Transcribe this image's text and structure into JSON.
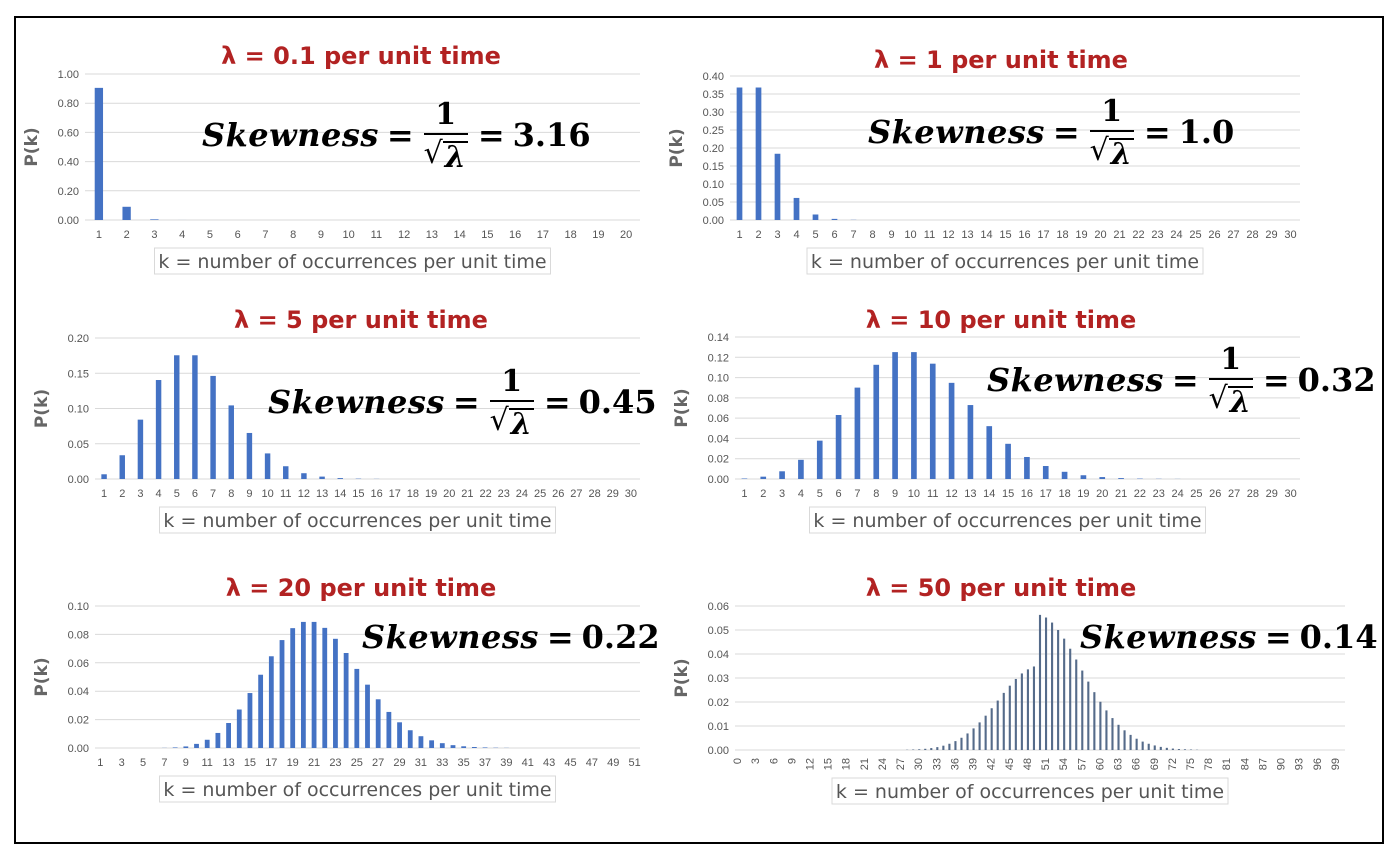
{
  "chart_data": [
    {
      "type": "bar",
      "title": "λ = 0.1 per unit time",
      "xlabel": "k = number of occurrences per unit time",
      "ylabel": "P(k)",
      "ylim": [
        0,
        1.0
      ],
      "yticks": [
        "0.00",
        "0.20",
        "0.40",
        "0.60",
        "0.80",
        "1.00"
      ],
      "categories": [
        1,
        2,
        3,
        4,
        5,
        6,
        7,
        8,
        9,
        10,
        11,
        12,
        13,
        14,
        15,
        16,
        17,
        18,
        19,
        20
      ],
      "x_tick_labels": [
        "1",
        "2",
        "3",
        "4",
        "5",
        "6",
        "7",
        "8",
        "9",
        "10",
        "11",
        "12",
        "13",
        "14",
        "15",
        "16",
        "17",
        "18",
        "19",
        "20"
      ],
      "values": [
        0.905,
        0.0905,
        0.0045,
        0.00015,
        0,
        0,
        0,
        0,
        0,
        0,
        0,
        0,
        0,
        0,
        0,
        0,
        0,
        0,
        0,
        0
      ],
      "annotation": {
        "word": "Skewness",
        "numerator": "1",
        "den": "λ",
        "value": "3.16"
      },
      "grid": true
    },
    {
      "type": "bar",
      "title": "λ = 1 per unit time",
      "xlabel": "k = number of occurrences per unit time",
      "ylabel": "P(k)",
      "ylim": [
        0,
        0.4
      ],
      "yticks": [
        "0.00",
        "0.05",
        "0.10",
        "0.15",
        "0.20",
        "0.25",
        "0.30",
        "0.35",
        "0.40"
      ],
      "categories": [
        1,
        2,
        3,
        4,
        5,
        6,
        7,
        8,
        9,
        10,
        11,
        12,
        13,
        14,
        15,
        16,
        17,
        18,
        19,
        20,
        21,
        22,
        23,
        24,
        25,
        26,
        27,
        28,
        29,
        30
      ],
      "x_tick_labels": [
        "1",
        "2",
        "3",
        "4",
        "5",
        "6",
        "7",
        "8",
        "9",
        "10",
        "11",
        "12",
        "13",
        "14",
        "15",
        "16",
        "17",
        "18",
        "19",
        "20",
        "21",
        "22",
        "23",
        "24",
        "25",
        "26",
        "27",
        "28",
        "29",
        "30"
      ],
      "values": [
        0.368,
        0.368,
        0.184,
        0.0613,
        0.0153,
        0.0031,
        0.0005,
        0,
        0,
        0,
        0,
        0,
        0,
        0,
        0,
        0,
        0,
        0,
        0,
        0,
        0,
        0,
        0,
        0,
        0,
        0,
        0,
        0,
        0,
        0
      ],
      "annotation": {
        "word": "Skewness",
        "numerator": "1",
        "den": "λ",
        "value": "1.0"
      },
      "grid": true
    },
    {
      "type": "bar",
      "title": "λ = 5 per unit time",
      "xlabel": "k = number of occurrences per unit time",
      "ylabel": "P(k)",
      "ylim": [
        0,
        0.2
      ],
      "yticks": [
        "0.00",
        "0.05",
        "0.10",
        "0.15",
        "0.20"
      ],
      "categories": [
        1,
        2,
        3,
        4,
        5,
        6,
        7,
        8,
        9,
        10,
        11,
        12,
        13,
        14,
        15,
        16,
        17,
        18,
        19,
        20,
        21,
        22,
        23,
        24,
        25,
        26,
        27,
        28,
        29,
        30
      ],
      "x_tick_labels": [
        "1",
        "2",
        "3",
        "4",
        "5",
        "6",
        "7",
        "8",
        "9",
        "10",
        "11",
        "12",
        "13",
        "14",
        "15",
        "16",
        "17",
        "18",
        "19",
        "20",
        "21",
        "22",
        "23",
        "24",
        "25",
        "26",
        "27",
        "28",
        "29",
        "30"
      ],
      "values": [
        0.0067,
        0.0337,
        0.0842,
        0.1404,
        0.1755,
        0.1755,
        0.1462,
        0.1044,
        0.0653,
        0.0363,
        0.0181,
        0.0082,
        0.0034,
        0.0013,
        0.0005,
        0.0002,
        0,
        0,
        0,
        0,
        0,
        0,
        0,
        0,
        0,
        0,
        0,
        0,
        0,
        0
      ],
      "annotation": {
        "word": "Skewness",
        "numerator": "1",
        "den": "λ",
        "value": "0.45"
      },
      "grid": true
    },
    {
      "type": "bar",
      "title": "λ = 10 per unit time",
      "xlabel": "k = number of occurrences per unit time",
      "ylabel": "P(k)",
      "ylim": [
        0,
        0.14
      ],
      "yticks": [
        "0.00",
        "0.02",
        "0.04",
        "0.06",
        "0.08",
        "0.10",
        "0.12",
        "0.14"
      ],
      "categories": [
        1,
        2,
        3,
        4,
        5,
        6,
        7,
        8,
        9,
        10,
        11,
        12,
        13,
        14,
        15,
        16,
        17,
        18,
        19,
        20,
        21,
        22,
        23,
        24,
        25,
        26,
        27,
        28,
        29,
        30
      ],
      "x_tick_labels": [
        "1",
        "2",
        "3",
        "4",
        "5",
        "6",
        "7",
        "8",
        "9",
        "10",
        "11",
        "12",
        "13",
        "14",
        "15",
        "16",
        "17",
        "18",
        "19",
        "20",
        "21",
        "22",
        "23",
        "24",
        "25",
        "26",
        "27",
        "28",
        "29",
        "30"
      ],
      "values": [
        0.0005,
        0.0023,
        0.0076,
        0.0189,
        0.0378,
        0.0631,
        0.0901,
        0.1126,
        0.1251,
        0.1251,
        0.1137,
        0.0948,
        0.0729,
        0.0521,
        0.0347,
        0.0217,
        0.0128,
        0.0071,
        0.0037,
        0.0019,
        0.0009,
        0.0004,
        0.0002,
        0.0001,
        0,
        0,
        0,
        0,
        0,
        0
      ],
      "annotation": {
        "word": "Skewness",
        "numerator": "1",
        "den": "λ",
        "value": "0.32"
      },
      "grid": true
    },
    {
      "type": "bar",
      "title": "λ = 20 per unit time",
      "xlabel": "k = number of occurrences per unit time",
      "ylabel": "P(k)",
      "ylim": [
        0,
        0.1
      ],
      "yticks": [
        "0.00",
        "0.02",
        "0.04",
        "0.06",
        "0.08",
        "0.10"
      ],
      "x_start": 1,
      "x_end": 51,
      "x_tick_labels": [
        "1",
        "3",
        "5",
        "7",
        "9",
        "11",
        "13",
        "15",
        "17",
        "19",
        "21",
        "23",
        "25",
        "27",
        "29",
        "31",
        "33",
        "35",
        "37",
        "39",
        "41",
        "43",
        "45",
        "47",
        "49",
        "51"
      ],
      "values": [
        0,
        0,
        0,
        0,
        0,
        0,
        0.0001,
        0.0004,
        0.0011,
        0.0029,
        0.0058,
        0.0106,
        0.0176,
        0.0271,
        0.0387,
        0.0516,
        0.0646,
        0.076,
        0.0844,
        0.0888,
        0.0888,
        0.0846,
        0.0769,
        0.0669,
        0.0557,
        0.0446,
        0.0343,
        0.0254,
        0.0181,
        0.0125,
        0.0083,
        0.0054,
        0.0034,
        0.002,
        0.0012,
        0.0007,
        0.0004,
        0.0002,
        0.0001,
        0,
        0,
        0,
        0,
        0,
        0,
        0,
        0,
        0,
        0,
        0,
        0
      ],
      "annotation": {
        "word": "Skewness",
        "value": "0.22"
      },
      "grid": true
    },
    {
      "type": "bar",
      "title": "λ = 50 per unit time",
      "xlabel": "k = number of occurrences per unit time",
      "ylabel": "P(k)",
      "ylim": [
        0,
        0.06
      ],
      "yticks": [
        "0.00",
        "0.01",
        "0.02",
        "0.03",
        "0.04",
        "0.05",
        "0.06"
      ],
      "x_start": 0,
      "x_end": 100,
      "x_tick_labels": [
        "0",
        "3",
        "6",
        "9",
        "12",
        "15",
        "18",
        "21",
        "24",
        "27",
        "30",
        "33",
        "36",
        "39",
        "42",
        "45",
        "48",
        "51",
        "54",
        "57",
        "60",
        "63",
        "66",
        "69",
        "72",
        "75",
        "78",
        "81",
        "84",
        "87",
        "90",
        "93",
        "96",
        "99"
      ],
      "values": [
        0,
        0,
        0,
        0,
        0,
        0,
        0,
        0,
        0,
        0,
        0,
        0,
        0,
        0,
        0,
        0,
        0,
        0,
        0,
        0,
        0,
        0,
        0,
        0,
        0,
        0,
        0,
        0,
        0.0001,
        0.0002,
        0.0003,
        0.0005,
        0.0008,
        0.0012,
        0.0018,
        0.0026,
        0.0037,
        0.0051,
        0.0069,
        0.009,
        0.0115,
        0.0143,
        0.0174,
        0.0206,
        0.0238,
        0.0268,
        0.0296,
        0.0319,
        0.0336,
        0.0348,
        0.0563,
        0.0552,
        0.0531,
        0.05,
        0.0464,
        0.0422,
        0.0377,
        0.0331,
        0.0285,
        0.0241,
        0.0201,
        0.0165,
        0.0133,
        0.0105,
        0.0082,
        0.0063,
        0.0047,
        0.0035,
        0.0026,
        0.0019,
        0.0013,
        0.0009,
        0.0006,
        0.0004,
        0.0003,
        0.0002,
        0.0001,
        0,
        0,
        0,
        0,
        0,
        0,
        0,
        0,
        0,
        0,
        0,
        0,
        0,
        0,
        0,
        0,
        0,
        0,
        0,
        0,
        0,
        0,
        0
      ],
      "annotation": {
        "word": "Skewness",
        "value": "0.14"
      },
      "grid": true
    }
  ]
}
